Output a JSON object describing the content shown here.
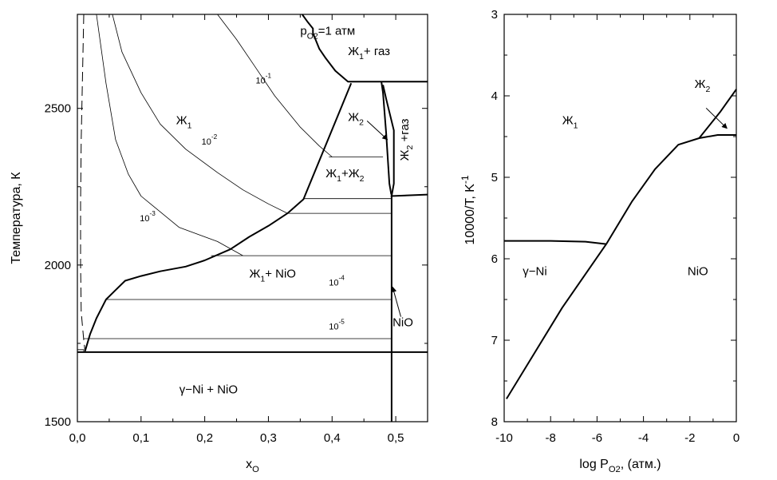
{
  "chart_data": [
    {
      "type": "line",
      "ylabel": "Температура, К",
      "xlabel": "x",
      "xlabel_sub": "O",
      "xlim": [
        0.0,
        0.55
      ],
      "ylim": [
        1500,
        2800
      ],
      "xticks": [
        0.0,
        0.1,
        0.2,
        0.3,
        0.4,
        0.5
      ],
      "xtick_labels": [
        "0,0",
        "0,1",
        "0,2",
        "0,3",
        "0,4",
        "0,5"
      ],
      "yticks": [
        1500,
        2000,
        2500
      ],
      "ytick_labels": [
        "1500",
        "2000",
        "2500"
      ],
      "grid": false,
      "series": [
        {
          "style": "bold",
          "points": [
            [
              0.353,
              2800
            ],
            [
              0.362,
              2775
            ],
            [
              0.37,
              2755
            ],
            [
              0.37,
              2740
            ],
            [
              0.38,
              2690
            ],
            [
              0.39,
              2660
            ],
            [
              0.405,
              2620
            ],
            [
              0.425,
              2585
            ],
            [
              0.55,
              2585
            ]
          ]
        },
        {
          "style": "bold",
          "points": [
            [
              0.0,
              1722
            ],
            [
              0.55,
              1722
            ]
          ]
        },
        {
          "style": "bold",
          "points": [
            [
              0.012,
              1725
            ],
            [
              0.02,
              1780
            ],
            [
              0.03,
              1830
            ],
            [
              0.045,
              1890
            ],
            [
              0.06,
              1920
            ],
            [
              0.075,
              1950
            ],
            [
              0.1,
              1965
            ],
            [
              0.13,
              1980
            ],
            [
              0.17,
              1995
            ],
            [
              0.2,
              2015
            ],
            [
              0.24,
              2050
            ],
            [
              0.27,
              2090
            ],
            [
              0.3,
              2125
            ],
            [
              0.33,
              2165
            ],
            [
              0.355,
              2210
            ],
            [
              0.43,
              2580
            ]
          ]
        },
        {
          "style": "bold",
          "points": [
            [
              0.4775,
              2585
            ],
            [
              0.48,
              2550
            ],
            [
              0.485,
              2420
            ],
            [
              0.49,
              2260
            ],
            [
              0.493,
              2225
            ]
          ]
        },
        {
          "style": "bold",
          "points": [
            [
              0.492,
              2220
            ],
            [
              0.55,
              2225
            ]
          ]
        },
        {
          "style": "bold",
          "points": [
            [
              0.4935,
              1500
            ],
            [
              0.4935,
              2220
            ]
          ]
        },
        {
          "style": "bold",
          "points": [
            [
              0.4935,
              2220
            ],
            [
              0.497,
              2260
            ],
            [
              0.497,
              2430
            ],
            [
              0.485,
              2530
            ],
            [
              0.48,
              2575
            ]
          ]
        },
        {
          "style": "thin",
          "points": [
            [
              0.355,
              2212
            ],
            [
              0.4935,
              2212
            ]
          ]
        },
        {
          "style": "thin",
          "points": [
            [
              0.33,
              2165
            ],
            [
              0.4935,
              2165
            ]
          ]
        },
        {
          "style": "thin",
          "points": [
            [
              0.21,
              2030
            ],
            [
              0.4935,
              2030
            ]
          ]
        },
        {
          "style": "thin",
          "points": [
            [
              0.045,
              1890
            ],
            [
              0.4935,
              1890
            ]
          ]
        },
        {
          "style": "thin",
          "points": [
            [
              0.01,
              1765
            ],
            [
              0.4935,
              1765
            ]
          ]
        },
        {
          "style": "thin",
          "points": [
            [
              0.395,
              2345
            ],
            [
              0.48,
              2345
            ]
          ]
        },
        {
          "style": "thin",
          "points": [
            [
              0.055,
              2800
            ],
            [
              0.07,
              2680
            ],
            [
              0.1,
              2550
            ],
            [
              0.13,
              2450
            ],
            [
              0.17,
              2370
            ],
            [
              0.22,
              2295
            ],
            [
              0.26,
              2240
            ],
            [
              0.3,
              2195
            ],
            [
              0.33,
              2165
            ]
          ]
        },
        {
          "style": "thin",
          "points": [
            [
              0.03,
              2800
            ],
            [
              0.045,
              2580
            ],
            [
              0.06,
              2400
            ],
            [
              0.08,
              2290
            ],
            [
              0.1,
              2220
            ],
            [
              0.13,
              2170
            ],
            [
              0.16,
              2120
            ],
            [
              0.22,
              2075
            ],
            [
              0.26,
              2030
            ]
          ]
        },
        {
          "style": "thin",
          "points": [
            [
              0.22,
              2800
            ],
            [
              0.25,
              2720
            ],
            [
              0.28,
              2630
            ],
            [
              0.31,
              2540
            ],
            [
              0.35,
              2440
            ],
            [
              0.38,
              2380
            ],
            [
              0.4,
              2345
            ]
          ]
        },
        {
          "style": "dashed",
          "points": [
            [
              0.01,
              2800
            ],
            [
              0.008,
              2600
            ],
            [
              0.006,
              2400
            ],
            [
              0.005,
              2200
            ],
            [
              0.005,
              2000
            ],
            [
              0.006,
              1850
            ],
            [
              0.01,
              1760
            ],
            [
              0.012,
              1725
            ]
          ]
        },
        {
          "style": "thin",
          "points": [
            [
              0.0,
              1730
            ],
            [
              0.01,
              1730
            ],
            [
              0.01,
              1722
            ]
          ]
        }
      ],
      "annotations": [
        {
          "text": "Ж",
          "sub": "1",
          "x": 0.155,
          "y": 2450,
          "kind": "region"
        },
        {
          "text": "Ж",
          "sub": "1",
          "suffix": "+ газ",
          "x": 0.425,
          "y": 2670,
          "kind": "region"
        },
        {
          "text": "Ж",
          "sub": "2",
          "x": 0.425,
          "y": 2460,
          "kind": "region"
        },
        {
          "text": "Ж",
          "sub": "1",
          "suffix": "+Ж",
          "sub2": "2",
          "x": 0.39,
          "y": 2280,
          "kind": "region"
        },
        {
          "text": "Ж",
          "sub": "1",
          "suffix": "+ NiO",
          "x": 0.27,
          "y": 1960,
          "kind": "region"
        },
        {
          "text": "γ−Ni + NiO",
          "x": 0.16,
          "y": 1590,
          "kind": "region"
        },
        {
          "text": "NiO",
          "x": 0.495,
          "y": 1805,
          "kind": "region"
        },
        {
          "text": "10",
          "sup": "-1",
          "x": 0.28,
          "y": 2580,
          "kind": "small"
        },
        {
          "text": "10",
          "sup": "-2",
          "x": 0.195,
          "y": 2385,
          "kind": "small"
        },
        {
          "text": "10",
          "sup": "-3",
          "x": 0.098,
          "y": 2140,
          "kind": "small"
        },
        {
          "text": "10",
          "sup": "-4",
          "x": 0.395,
          "y": 1935,
          "kind": "small"
        },
        {
          "text": "10",
          "sup": "-5",
          "x": 0.395,
          "y": 1795,
          "kind": "small"
        },
        {
          "text": "p",
          "sub": "O2",
          "suffix": "=1 атм",
          "x": 0.35,
          "y": 2735,
          "kind": "region"
        },
        {
          "text": "Ж",
          "sub": "2",
          "suffix": " +газ",
          "x": 0.52,
          "y": 2400,
          "kind": "vertical"
        }
      ],
      "arrows": [
        {
          "from": [
            0.455,
            2460
          ],
          "to": [
            0.487,
            2400
          ]
        },
        {
          "from": [
            0.508,
            1835
          ],
          "to": [
            0.495,
            1930
          ]
        }
      ]
    },
    {
      "type": "line",
      "xlabel": "log P",
      "xlabel_sub": "O2",
      "xlabel_suffix": ", (атм.)",
      "ylabel": "10000/T, K",
      "ylabel_sup": "-1",
      "xlim": [
        -10,
        0
      ],
      "ylim": [
        3,
        8
      ],
      "y_inverted": true,
      "xticks": [
        -10,
        -8,
        -6,
        -4,
        -2,
        0
      ],
      "xtick_labels": [
        "-10",
        "-8",
        "-6",
        "-4",
        "-2",
        "0"
      ],
      "yticks": [
        3,
        4,
        5,
        6,
        7,
        8
      ],
      "ytick_labels": [
        "3",
        "4",
        "5",
        "6",
        "7",
        "8"
      ],
      "grid": false,
      "series": [
        {
          "style": "bold",
          "points": [
            [
              -9.9,
              7.72
            ],
            [
              -7.5,
              6.6
            ],
            [
              -5.6,
              5.82
            ],
            [
              -4.5,
              5.3
            ],
            [
              -3.5,
              4.9
            ],
            [
              -2.5,
              4.6
            ],
            [
              -1.6,
              4.52
            ],
            [
              -0.7,
              4.2
            ],
            [
              0,
              3.92
            ]
          ]
        },
        {
          "style": "bold",
          "points": [
            [
              -10,
              5.78
            ],
            [
              -8,
              5.78
            ],
            [
              -6.5,
              5.79
            ],
            [
              -5.6,
              5.82
            ]
          ]
        },
        {
          "style": "bold",
          "points": [
            [
              -1.6,
              4.52
            ],
            [
              -0.8,
              4.48
            ],
            [
              0,
              4.48
            ]
          ]
        }
      ],
      "annotations": [
        {
          "text": "Ж",
          "sub": "1",
          "x": -7.5,
          "y": 4.35,
          "kind": "region"
        },
        {
          "text": "Ж",
          "sub": "2",
          "x": -1.8,
          "y": 3.9,
          "kind": "region"
        },
        {
          "text": "γ−Ni",
          "x": -9.2,
          "y": 6.2,
          "kind": "region"
        },
        {
          "text": "NiO",
          "x": -2.1,
          "y": 6.2,
          "kind": "region"
        }
      ],
      "arrows": [
        {
          "from": [
            -1.3,
            4.15
          ],
          "to": [
            -0.4,
            4.4
          ]
        }
      ]
    }
  ]
}
